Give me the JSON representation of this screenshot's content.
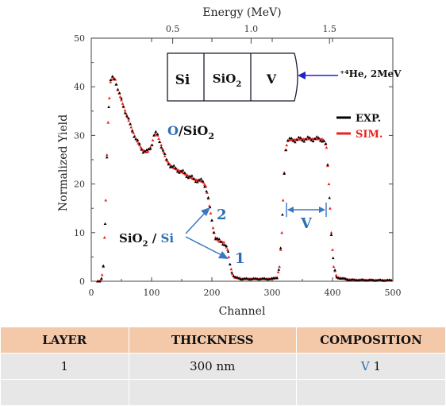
{
  "chart_data": {
    "type": "scatter",
    "title": "",
    "xlabel": "Channel",
    "ylabel": "Normalized Yield",
    "top_axis_label": "Energy (MeV)",
    "xlim": [
      0,
      500
    ],
    "ylim": [
      0,
      50
    ],
    "x_ticks": [
      "0",
      "100",
      "200",
      "300",
      "400",
      "500"
    ],
    "y_ticks": [
      "0",
      "10",
      "20",
      "30",
      "40",
      "50"
    ],
    "top_ticks": [
      "0.5",
      "1.0",
      "1.5"
    ],
    "top_tick_channels": [
      135,
      265,
      395
    ],
    "series": [
      {
        "name": "EXP.",
        "color": "#000000",
        "marker": "triangle",
        "profile": [
          [
            0,
            0
          ],
          [
            14,
            0
          ],
          [
            17,
            0.5
          ],
          [
            20,
            3
          ],
          [
            23,
            12
          ],
          [
            26,
            26
          ],
          [
            29,
            36
          ],
          [
            32,
            41
          ],
          [
            36,
            42
          ],
          [
            40,
            41.5
          ],
          [
            45,
            39
          ],
          [
            55,
            35.5
          ],
          [
            65,
            32
          ],
          [
            75,
            29
          ],
          [
            85,
            27
          ],
          [
            93,
            26.5
          ],
          [
            100,
            28
          ],
          [
            105,
            30.5
          ],
          [
            110,
            30
          ],
          [
            116,
            28
          ],
          [
            124,
            25
          ],
          [
            134,
            23.5
          ],
          [
            150,
            22.5
          ],
          [
            170,
            21
          ],
          [
            185,
            20.5
          ],
          [
            190,
            19.5
          ],
          [
            194,
            17
          ],
          [
            198,
            14
          ],
          [
            202,
            11
          ],
          [
            206,
            9
          ],
          [
            212,
            8.2
          ],
          [
            220,
            8
          ],
          [
            226,
            6.5
          ],
          [
            230,
            3.5
          ],
          [
            234,
            1.5
          ],
          [
            238,
            0.8
          ],
          [
            250,
            0.5
          ],
          [
            300,
            0.5
          ],
          [
            308,
            0.8
          ],
          [
            312,
            3
          ],
          [
            316,
            10
          ],
          [
            319,
            20
          ],
          [
            322,
            27
          ],
          [
            326,
            29
          ],
          [
            345,
            29.2
          ],
          [
            370,
            29.3
          ],
          [
            385,
            29.2
          ],
          [
            390,
            27.5
          ],
          [
            394,
            20
          ],
          [
            398,
            10
          ],
          [
            402,
            3
          ],
          [
            407,
            0.8
          ],
          [
            430,
            0.3
          ],
          [
            500,
            0.2
          ]
        ]
      },
      {
        "name": "SIM.",
        "color": "#e8231f",
        "marker": "triangle",
        "profile": [
          [
            0,
            0
          ],
          [
            14,
            0
          ],
          [
            17,
            0.5
          ],
          [
            20,
            3
          ],
          [
            23,
            12
          ],
          [
            26,
            26
          ],
          [
            29,
            36
          ],
          [
            32,
            41
          ],
          [
            36,
            42
          ],
          [
            40,
            41.5
          ],
          [
            45,
            39
          ],
          [
            55,
            35.5
          ],
          [
            65,
            32
          ],
          [
            75,
            29
          ],
          [
            85,
            27
          ],
          [
            93,
            26.5
          ],
          [
            100,
            28
          ],
          [
            105,
            30.5
          ],
          [
            110,
            30
          ],
          [
            116,
            28
          ],
          [
            124,
            25
          ],
          [
            134,
            23.5
          ],
          [
            150,
            22.5
          ],
          [
            170,
            21
          ],
          [
            185,
            20.5
          ],
          [
            190,
            19.5
          ],
          [
            194,
            17
          ],
          [
            198,
            14
          ],
          [
            202,
            11
          ],
          [
            206,
            9
          ],
          [
            212,
            8.2
          ],
          [
            220,
            8
          ],
          [
            226,
            6.5
          ],
          [
            230,
            3.5
          ],
          [
            234,
            1.5
          ],
          [
            238,
            0.8
          ],
          [
            250,
            0.5
          ],
          [
            300,
            0.5
          ],
          [
            308,
            0.8
          ],
          [
            312,
            3
          ],
          [
            316,
            10
          ],
          [
            319,
            20
          ],
          [
            322,
            27
          ],
          [
            326,
            29
          ],
          [
            345,
            29.2
          ],
          [
            370,
            29.3
          ],
          [
            385,
            29.2
          ],
          [
            390,
            27.5
          ],
          [
            394,
            20
          ],
          [
            398,
            10
          ],
          [
            402,
            3
          ],
          [
            407,
            0.8
          ],
          [
            430,
            0.3
          ],
          [
            500,
            0.2
          ]
        ]
      }
    ],
    "legend": {
      "position": "right",
      "entries": [
        "EXP.",
        "SIM."
      ]
    },
    "annotations": {
      "o_sio2": {
        "a": "O",
        "b": "/SiO",
        "sub": "2"
      },
      "sio2_si": {
        "a": "SiO",
        "sub": "2",
        "b": " / ",
        "c": "Si"
      },
      "edge_2": "2",
      "edge_1": "1",
      "v_label": "V",
      "beam": "⁺⁴He, 2MeV"
    },
    "schematic": [
      "Si",
      "SiO2",
      "V"
    ]
  },
  "table": {
    "headers": [
      "LAYER",
      "THICKNESS",
      "COMPOSITION"
    ],
    "rows": [
      {
        "layer": "1",
        "thickness": "300 nm",
        "comp_el": "V",
        "comp_num": "1"
      }
    ]
  },
  "colors": {
    "exp": "#000000",
    "sim": "#e8231f",
    "accent_blue": "#2e6db4",
    "arrow_blue": "#2222cc",
    "header_bg": "#f4c9aa",
    "row_bg": "#e7e7e7"
  }
}
